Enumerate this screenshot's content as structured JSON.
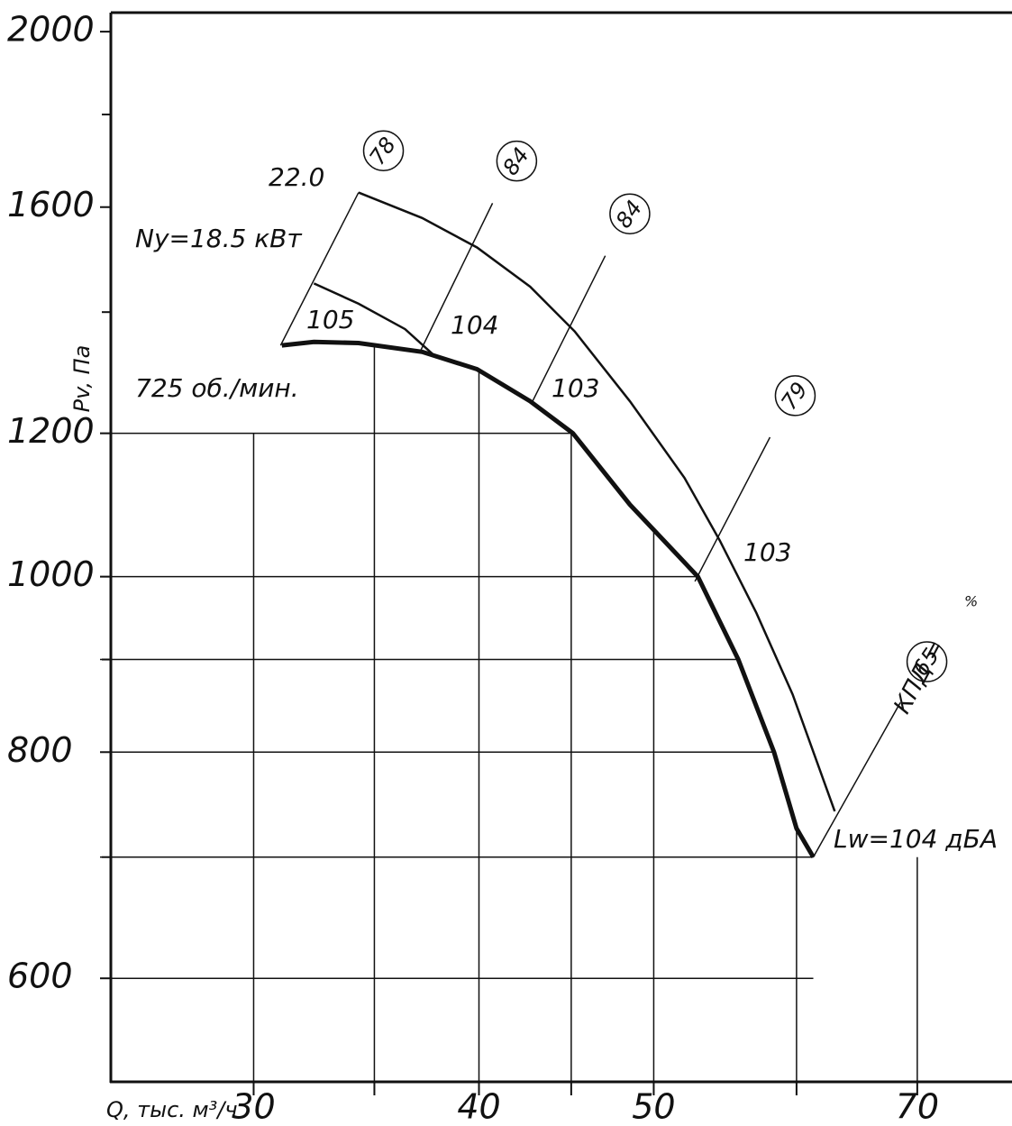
{
  "chart_data": {
    "type": "line",
    "xlabel": "Q, тыс. м³/ч",
    "ylabel": "Pv, Па",
    "xscale": "log",
    "yscale": "log",
    "xlim": [
      25,
      79
    ],
    "ylim": [
      526,
      2049
    ],
    "xticks": [
      30,
      40,
      50,
      70
    ],
    "minor_xticks": [
      35,
      45,
      60
    ],
    "yticks": [
      600,
      800,
      1000,
      1200,
      1600,
      2000
    ],
    "minor_yticks": [
      700,
      900,
      1400,
      1800
    ],
    "grid_x": [
      30,
      35,
      40,
      45,
      50,
      60,
      70
    ],
    "grid_y": [
      600,
      700,
      800,
      900,
      1000,
      1200
    ],
    "series": [
      {
        "name": "22.0",
        "color": "#111111",
        "width": 2.5,
        "x": [
          34.3,
          37.2,
          39.9,
          42.7,
          45.2,
          48.5,
          52.0,
          54.4,
          57.0,
          59.7,
          63.0
        ],
        "values": [
          1630,
          1578,
          1520,
          1446,
          1366,
          1250,
          1134,
          1047,
          955,
          861,
          742
        ]
      },
      {
        "name": "Ny=18.5 кВт",
        "color": "#111111",
        "width": 2.5,
        "x": [
          32.4,
          34.3,
          36.4,
          37.9
        ],
        "values": [
          1452,
          1415,
          1370,
          1321
        ]
      },
      {
        "name": "725 об./мин.",
        "color": "#111111",
        "width": 5,
        "x": [
          31.1,
          32.4,
          34.3,
          37.2,
          39.9,
          42.7,
          45.1,
          48.5,
          52.9,
          55.7,
          58.3,
          60.0,
          61.3
        ],
        "values": [
          1342,
          1348,
          1346,
          1331,
          1302,
          1250,
          1200,
          1096,
          1000,
          900,
          800,
          726,
          700
        ]
      }
    ],
    "efficiency_lines": [
      {
        "label": "78",
        "x": [
          31.05,
          34.3
        ],
        "y": [
          1342,
          1630
        ]
      },
      {
        "label": "84",
        "x": [
          37.1,
          40.7
        ],
        "y": [
          1331,
          1608
        ]
      },
      {
        "label": "84",
        "x": [
          42.8,
          47.0
        ],
        "y": [
          1248,
          1504
        ]
      },
      {
        "label": "79",
        "x": [
          52.7,
          58.0
        ],
        "y": [
          994,
          1194
        ]
      },
      {
        "label": "65",
        "x": [
          61.3,
          68.5
        ],
        "y": [
          700,
          852
        ]
      }
    ],
    "noise_labels": [
      "105",
      "104",
      "103",
      "103"
    ],
    "efficiency_prefix": "КПД =",
    "efficiency_unit": "%",
    "sound_power": "Lw=104 дБА"
  }
}
